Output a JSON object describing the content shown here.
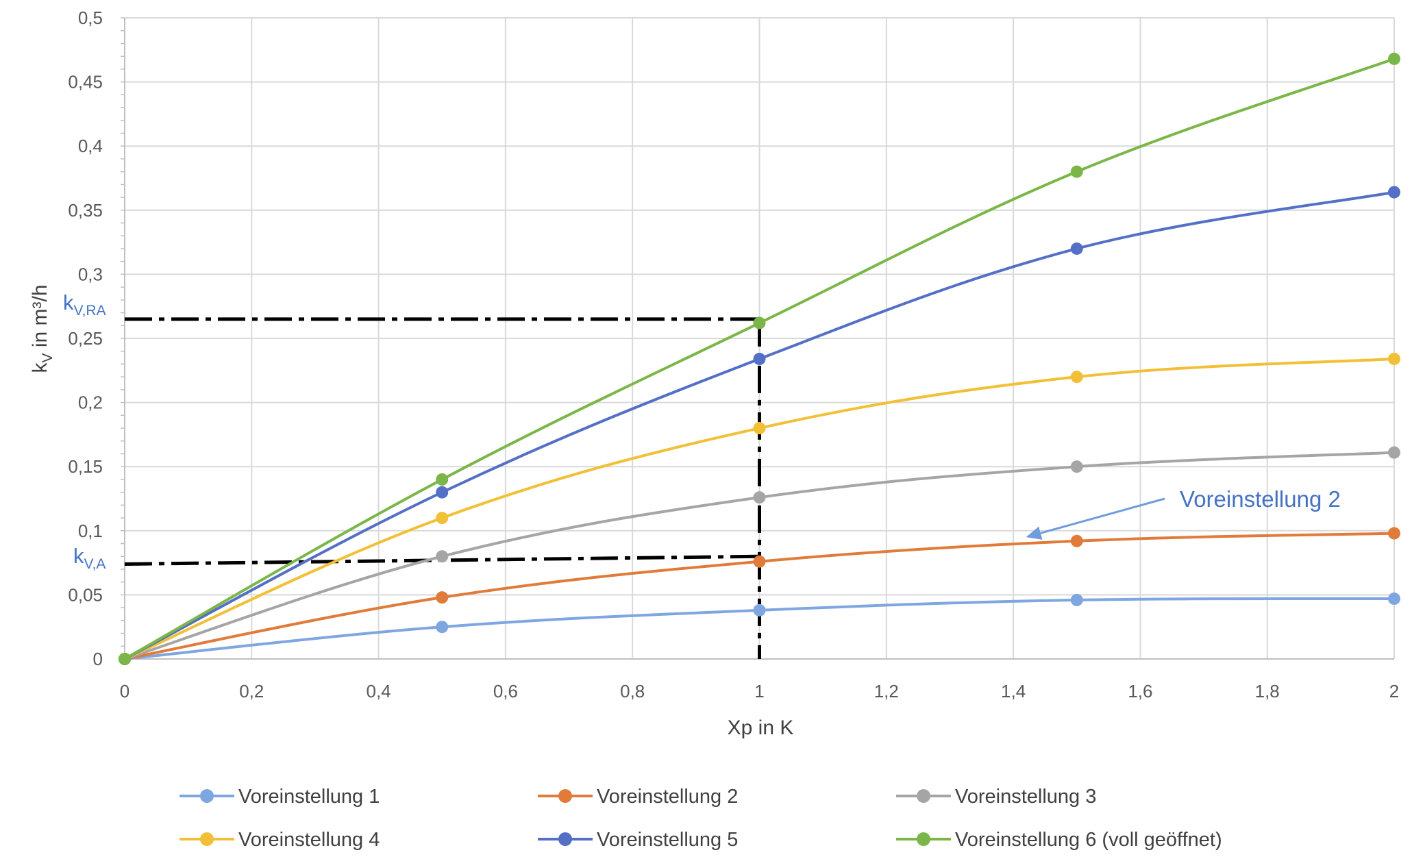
{
  "chart_data": {
    "type": "line",
    "title": "",
    "xlabel": "Xp in K",
    "ylabel": {
      "base": "k",
      "sub": "V",
      "rest": " in m³/h"
    },
    "xlim": [
      0,
      2
    ],
    "ylim": [
      0,
      0.5
    ],
    "xticks": [
      0,
      0.2,
      0.4,
      0.6,
      0.8,
      1,
      1.2,
      1.4,
      1.6,
      1.8,
      2
    ],
    "xtick_labels": [
      "0",
      "0,2",
      "0,4",
      "0,6",
      "0,8",
      "1",
      "1,2",
      "1,4",
      "1,6",
      "1,8",
      "2"
    ],
    "yticks": [
      0,
      0.05,
      0.1,
      0.15,
      0.2,
      0.25,
      0.3,
      0.35,
      0.4,
      0.45,
      0.5
    ],
    "ytick_labels": [
      "0",
      "0,05",
      "0,1",
      "0,15",
      "0,2",
      "0,25",
      "0,3",
      "0,35",
      "0,4",
      "0,45",
      "0,5"
    ],
    "grid": true,
    "legend_position": "bottom",
    "x": [
      0,
      0.5,
      1,
      1.5,
      2
    ],
    "series": [
      {
        "name": "Voreinstellung 1",
        "color": "#7EA6E0",
        "values": [
          0,
          0.025,
          0.038,
          0.046,
          0.047
        ]
      },
      {
        "name": "Voreinstellung 2",
        "color": "#E07B39",
        "values": [
          0,
          0.048,
          0.076,
          0.092,
          0.098
        ]
      },
      {
        "name": "Voreinstellung 3",
        "color": "#A5A5A5",
        "values": [
          0,
          0.08,
          0.126,
          0.15,
          0.161
        ]
      },
      {
        "name": "Voreinstellung 4",
        "color": "#F2C037",
        "values": [
          0,
          0.11,
          0.18,
          0.22,
          0.234
        ]
      },
      {
        "name": "Voreinstellung 5",
        "color": "#5470C6",
        "values": [
          0,
          0.13,
          0.234,
          0.32,
          0.364
        ]
      },
      {
        "name": "Voreinstellung 6 (voll geöffnet)",
        "color": "#7AB648",
        "values": [
          0,
          0.14,
          0.262,
          0.38,
          0.468
        ]
      }
    ],
    "reference_lines": [
      {
        "label": {
          "base": "k",
          "sub": "V,RA"
        },
        "y_start": 0.265,
        "y_end": 0.265,
        "x_end": 1
      },
      {
        "label": {
          "base": "k",
          "sub": "V,A"
        },
        "y_start": 0.074,
        "y_end": 0.08,
        "x_end": 1
      },
      {
        "vertical_x": 1,
        "y_top": 0.265
      }
    ],
    "annotations": [
      {
        "text": "Voreinstellung 2",
        "color": "#4472C4",
        "arrow_to": {
          "x": 1.42,
          "y": 0.095
        }
      }
    ]
  }
}
